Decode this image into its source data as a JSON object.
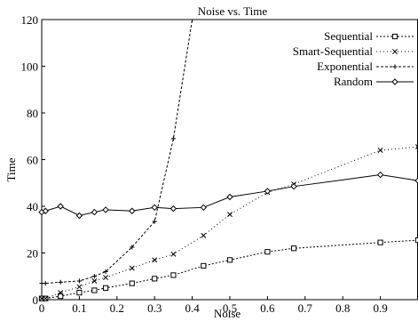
{
  "chart_data": {
    "type": "line",
    "title": "Noise vs. Time",
    "xlabel": "Noise",
    "ylabel": "Time",
    "xlim": [
      0,
      1.0
    ],
    "ylim": [
      0,
      120
    ],
    "xticks": [
      "0",
      "0.1",
      "0.2",
      "0.3",
      "0.4",
      "0.5",
      "0.6",
      "0.7",
      "0.8",
      "0.9"
    ],
    "yticks": [
      "0",
      "20",
      "40",
      "60",
      "80",
      "100",
      "120"
    ],
    "grid": false,
    "legend_position": "top-right",
    "series": [
      {
        "name": "Sequential",
        "marker": "square",
        "dash": "2,2",
        "points": [
          [
            0.0,
            0.5
          ],
          [
            0.01,
            0.5
          ],
          [
            0.05,
            1.5
          ],
          [
            0.1,
            3.0
          ],
          [
            0.14,
            4.0
          ],
          [
            0.17,
            5.0
          ],
          [
            0.24,
            7.0
          ],
          [
            0.3,
            9.0
          ],
          [
            0.35,
            10.5
          ],
          [
            0.43,
            14.5
          ],
          [
            0.5,
            17.0
          ],
          [
            0.6,
            20.5
          ],
          [
            0.67,
            22.0
          ],
          [
            0.9,
            24.5
          ],
          [
            1.0,
            25.5
          ]
        ]
      },
      {
        "name": "Smart-Sequential",
        "marker": "x",
        "dash": "1,3",
        "points": [
          [
            0.0,
            0.5
          ],
          [
            0.01,
            0.5
          ],
          [
            0.05,
            3.0
          ],
          [
            0.1,
            5.5
          ],
          [
            0.14,
            8.0
          ],
          [
            0.17,
            9.5
          ],
          [
            0.24,
            13.5
          ],
          [
            0.3,
            17.0
          ],
          [
            0.35,
            19.5
          ],
          [
            0.43,
            27.5
          ],
          [
            0.5,
            36.5
          ],
          [
            0.6,
            46.0
          ],
          [
            0.67,
            49.5
          ],
          [
            0.9,
            64.0
          ],
          [
            1.0,
            65.5
          ]
        ]
      },
      {
        "name": "Exponential",
        "marker": "plus",
        "dash": "3,2",
        "points": [
          [
            0.0,
            7.0
          ],
          [
            0.01,
            7.0
          ],
          [
            0.05,
            7.5
          ],
          [
            0.1,
            8.0
          ],
          [
            0.14,
            10.0
          ],
          [
            0.17,
            12.0
          ],
          [
            0.24,
            22.5
          ],
          [
            0.3,
            33.5
          ],
          [
            0.35,
            69.0
          ],
          [
            0.4,
            120.0
          ]
        ]
      },
      {
        "name": "Random",
        "marker": "diamond",
        "dash": "",
        "points": [
          [
            0.0,
            37.5
          ],
          [
            0.01,
            38.0
          ],
          [
            0.05,
            40.0
          ],
          [
            0.1,
            36.0
          ],
          [
            0.14,
            37.5
          ],
          [
            0.17,
            38.5
          ],
          [
            0.24,
            38.0
          ],
          [
            0.3,
            39.5
          ],
          [
            0.35,
            39.0
          ],
          [
            0.43,
            39.5
          ],
          [
            0.5,
            44.0
          ],
          [
            0.6,
            46.5
          ],
          [
            0.67,
            48.5
          ],
          [
            0.9,
            53.5
          ],
          [
            1.0,
            51.0
          ]
        ]
      }
    ]
  }
}
